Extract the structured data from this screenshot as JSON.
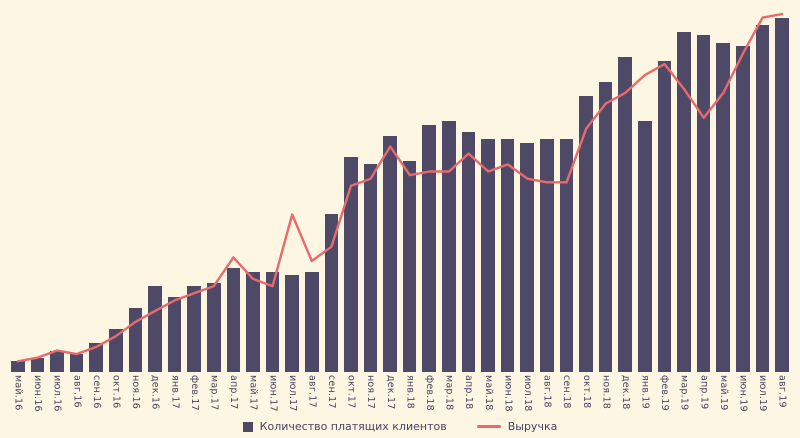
{
  "chart_data": {
    "type": "bar",
    "title": "",
    "xlabel": "",
    "ylabel": "",
    "grid": false,
    "legend_position": "bottom",
    "y_axis_labels_visible": false,
    "note": "No y-axis tick labels visible in source; values estimated as percent of plot height (0-100).",
    "ylim": [
      0,
      100
    ],
    "categories": [
      "май.16",
      "июн.16",
      "июл.16",
      "авг.16",
      "сен.16",
      "окт.16",
      "ноя.16",
      "дек.16",
      "янв.17",
      "фев.17",
      "мар.17",
      "апр.17",
      "май.17",
      "июн.17",
      "июл.17",
      "авг.17",
      "сен.17",
      "окт.17",
      "ноя.17",
      "дек.17",
      "янв.18",
      "фев.18",
      "мар.18",
      "апр.18",
      "май.18",
      "июн.18",
      "июл.18",
      "авг.18",
      "сен.18",
      "окт.18",
      "ноя.18",
      "дек.18",
      "янв.19",
      "фев.19",
      "мар.19",
      "апр.19",
      "май.19",
      "июн.19",
      "июл.19",
      "авг.19"
    ],
    "series": [
      {
        "name": "Количество платящих клиентов",
        "type": "bar",
        "color": "#4F4968",
        "values": [
          3,
          4,
          6,
          5,
          8,
          12,
          18,
          24,
          21,
          24,
          25,
          29,
          28,
          28,
          27,
          28,
          44,
          60,
          58,
          66,
          59,
          69,
          70,
          67,
          65,
          65,
          64,
          65,
          65,
          77,
          81,
          88,
          70,
          87,
          95,
          94,
          92,
          91,
          97,
          99
        ]
      },
      {
        "name": "Выручка",
        "type": "line",
        "color": "#E9696C",
        "values": [
          3,
          4,
          6,
          5,
          7,
          10,
          14,
          17,
          20,
          22,
          24,
          32,
          26,
          24,
          44,
          31,
          35,
          52,
          54,
          63,
          55,
          56,
          56,
          61,
          56,
          58,
          54,
          53,
          53,
          68,
          75,
          78,
          83,
          86,
          79,
          71,
          78,
          89,
          99,
          100
        ]
      }
    ]
  },
  "colors": {
    "background": "#FCF6E3",
    "bar": "#4F4968",
    "line": "#E9696C",
    "label_text": "#4A4460"
  }
}
